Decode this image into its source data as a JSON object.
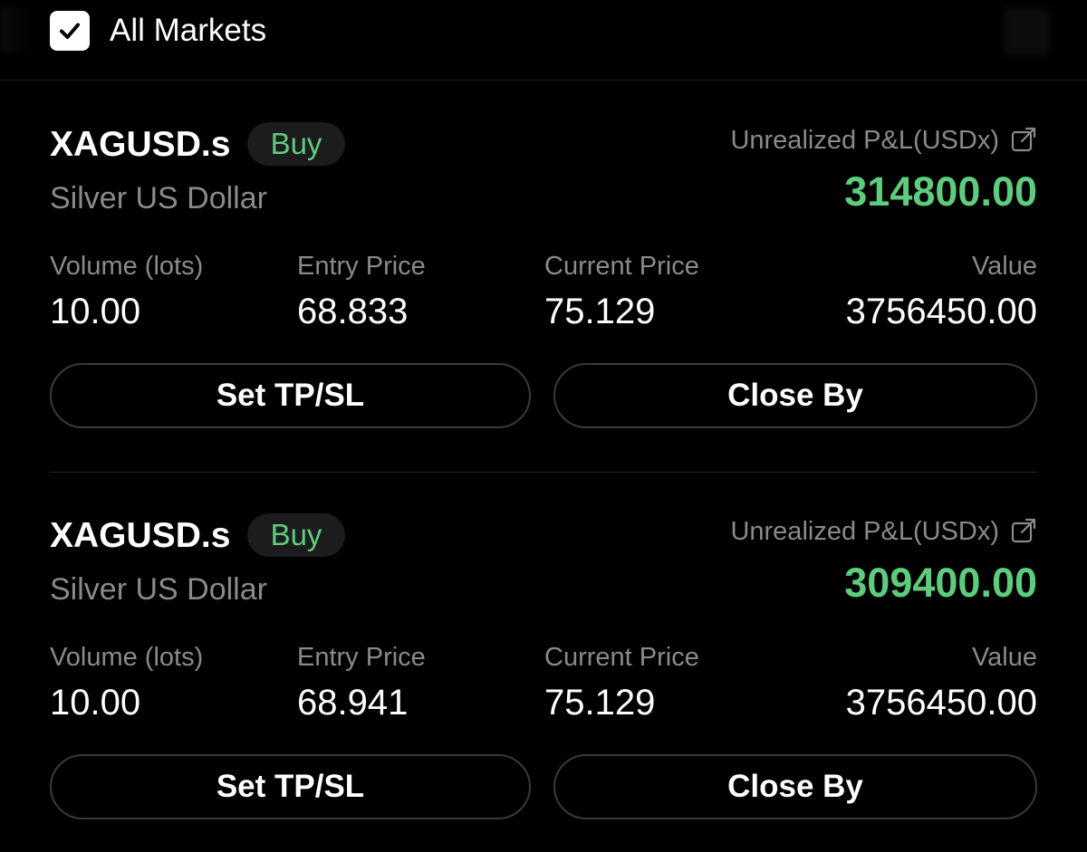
{
  "filter": {
    "checked": true,
    "label": "All Markets"
  },
  "colors": {
    "background": "#000000",
    "profit_green": "#5dcc7c",
    "secondary_text": "#8a8a8e",
    "button_border": "#3a3a3c",
    "badge_bg": "#1c1c1e"
  },
  "positions": [
    {
      "symbol": "XAGUSD.s",
      "side": "Buy",
      "name": "Silver US Dollar",
      "pnl_label": "Unrealized P&L(USDx)",
      "pnl_icon": "external-link-icon",
      "pnl_value": "314800.00",
      "stats": {
        "volume_label": "Volume (lots)",
        "volume": "10.00",
        "entry_label": "Entry Price",
        "entry": "68.833",
        "current_label": "Current Price",
        "current": "75.129",
        "value_label": "Value",
        "value": "3756450.00"
      },
      "actions": {
        "tpsl": "Set TP/SL",
        "close": "Close By"
      }
    },
    {
      "symbol": "XAGUSD.s",
      "side": "Buy",
      "name": "Silver US Dollar",
      "pnl_label": "Unrealized P&L(USDx)",
      "pnl_icon": "external-link-icon",
      "pnl_value": "309400.00",
      "stats": {
        "volume_label": "Volume (lots)",
        "volume": "10.00",
        "entry_label": "Entry Price",
        "entry": "68.941",
        "current_label": "Current Price",
        "current": "75.129",
        "value_label": "Value",
        "value": "3756450.00"
      },
      "actions": {
        "tpsl": "Set TP/SL",
        "close": "Close By"
      }
    }
  ]
}
